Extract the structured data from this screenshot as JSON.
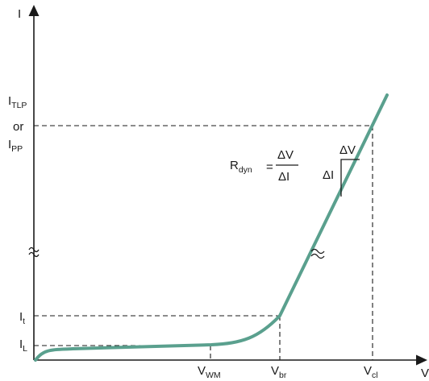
{
  "diagram": {
    "axes": {
      "y_label": "I",
      "x_label": "V"
    },
    "y_ticks": [
      {
        "main": "I",
        "sub": "TLP"
      },
      {
        "main": "or",
        "sub": ""
      },
      {
        "main": "I",
        "sub": "PP"
      },
      {
        "main": "I",
        "sub": "t"
      },
      {
        "main": "I",
        "sub": "L"
      }
    ],
    "x_ticks": [
      {
        "main": "V",
        "sub": "WM"
      },
      {
        "main": "V",
        "sub": "br"
      },
      {
        "main": "V",
        "sub": "cl"
      }
    ],
    "formula": {
      "lhs_main": "R",
      "lhs_sub": "dyn",
      "equals": "=",
      "numerator": "ΔV",
      "denominator": "ΔI"
    },
    "slope_triangle": {
      "dv_label": "ΔV",
      "di_label": "ΔI"
    },
    "curve_color": "#5aa08e",
    "axis_break_symbol": "≈"
  }
}
